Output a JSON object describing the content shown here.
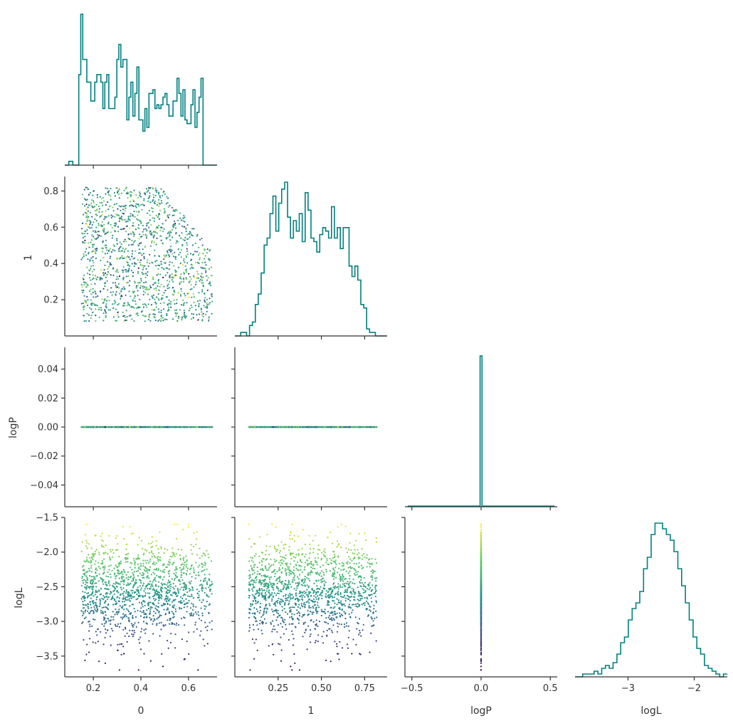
{
  "colors": {
    "histogram": "#008080",
    "axis": "#333333",
    "colormap": "viridis"
  },
  "chart_data": [
    {
      "panel": "0-vs-0",
      "type": "histogram",
      "variable": "0",
      "bin_range": [
        0.08,
        0.72
      ],
      "counts": [
        0,
        0,
        1,
        1,
        0,
        0,
        0,
        24,
        40,
        28,
        28,
        22,
        22,
        17,
        17,
        22,
        24,
        24,
        22,
        15,
        22,
        24,
        15,
        15,
        15,
        18,
        28,
        32,
        26,
        28,
        28,
        12,
        18,
        22,
        13,
        19,
        26,
        12,
        12,
        9,
        15,
        10,
        19,
        19,
        20,
        15,
        16,
        15,
        16,
        18,
        19,
        16,
        13,
        13,
        17,
        17,
        23,
        19,
        13,
        20,
        12,
        11,
        11,
        16,
        20,
        10,
        14,
        18,
        23,
        0,
        0,
        0,
        0,
        0,
        0,
        0
      ],
      "note": "sample counts per bin"
    },
    {
      "panel": "0-vs-1",
      "type": "scatter",
      "x_variable": "0",
      "y_variable": "1",
      "x_range": [
        0.08,
        0.72
      ],
      "y_range": [
        0.0,
        0.88
      ],
      "x_ticks": [
        "0.2",
        "0.4",
        "0.6"
      ],
      "y_ticks": [
        "0.2",
        "0.4",
        "0.6",
        "0.8"
      ],
      "ylabel": "1",
      "point_count": 1400,
      "color_by": "logL"
    },
    {
      "panel": "1-vs-1",
      "type": "histogram",
      "variable": "1",
      "bin_range": [
        0.0,
        0.88
      ],
      "counts": [
        0,
        0,
        1,
        1,
        0,
        3,
        4,
        9,
        12,
        18,
        26,
        28,
        35,
        40,
        30,
        38,
        42,
        44,
        34,
        28,
        33,
        30,
        35,
        27,
        41,
        36,
        28,
        27,
        24,
        29,
        31,
        30,
        28,
        37,
        28,
        31,
        25,
        31,
        31,
        20,
        17,
        20,
        16,
        9,
        8,
        2,
        1,
        1,
        0,
        0,
        0,
        0
      ]
    },
    {
      "panel": "0-vs-logP",
      "type": "scatter",
      "x_variable": "0",
      "y_variable": "logP",
      "x_range": [
        0.08,
        0.72
      ],
      "y_range": [
        -0.055,
        0.055
      ],
      "y_ticks": [
        "0.04",
        "0.02",
        "0.00",
        "−0.02",
        "−0.04"
      ],
      "ylabel": "logP",
      "all_y_values": 0.0
    },
    {
      "panel": "1-vs-logP",
      "type": "scatter",
      "x_variable": "1",
      "y_variable": "logP",
      "x_range": [
        0.0,
        0.88
      ],
      "y_range": [
        -0.055,
        0.055
      ],
      "all_y_values": 0.0
    },
    {
      "panel": "logP-vs-logP",
      "type": "histogram",
      "variable": "logP",
      "bin_range": [
        -0.55,
        0.55
      ],
      "note": "single spike at 0.0"
    },
    {
      "panel": "0-vs-logL",
      "type": "scatter",
      "x_variable": "0",
      "y_variable": "logL",
      "x_range": [
        0.08,
        0.72
      ],
      "y_range": [
        -3.8,
        -1.5
      ],
      "x_ticks": [
        "0.2",
        "0.4",
        "0.6"
      ],
      "y_ticks": [
        "−1.5",
        "−2.0",
        "−2.5",
        "−3.0",
        "−3.5"
      ],
      "xlabel": "0",
      "ylabel": "logL"
    },
    {
      "panel": "1-vs-logL",
      "type": "scatter",
      "x_variable": "1",
      "y_variable": "logL",
      "x_range": [
        0.0,
        0.88
      ],
      "y_range": [
        -3.8,
        -1.5
      ],
      "x_ticks": [
        "0.25",
        "0.50",
        "0.75"
      ],
      "xlabel": "1"
    },
    {
      "panel": "logP-vs-logL",
      "type": "scatter",
      "x_variable": "logP",
      "y_variable": "logL",
      "x_range": [
        -0.55,
        0.55
      ],
      "y_range": [
        -3.8,
        -1.5
      ],
      "x_ticks": [
        "−0.5",
        "0.0",
        "0.5"
      ],
      "xlabel": "logP"
    },
    {
      "panel": "logL-vs-logL",
      "type": "histogram",
      "variable": "logL",
      "bin_range": [
        -3.8,
        -1.5
      ],
      "counts": [
        0,
        0,
        1,
        1,
        1,
        2,
        1,
        3,
        4,
        3,
        5,
        8,
        12,
        14,
        20,
        24,
        26,
        30,
        38,
        42,
        50,
        54,
        54,
        52,
        50,
        48,
        44,
        38,
        32,
        26,
        20,
        14,
        10,
        8,
        4,
        3,
        2,
        1,
        0,
        1
      ],
      "x_ticks": [
        "−3",
        "−2"
      ],
      "xlabel": "logL"
    }
  ],
  "labels": {
    "x_0": "0",
    "x_1": "1",
    "x_logP": "logP",
    "x_logL": "logL",
    "y_1": "1",
    "y_logP": "logP",
    "y_logL": "logL"
  }
}
